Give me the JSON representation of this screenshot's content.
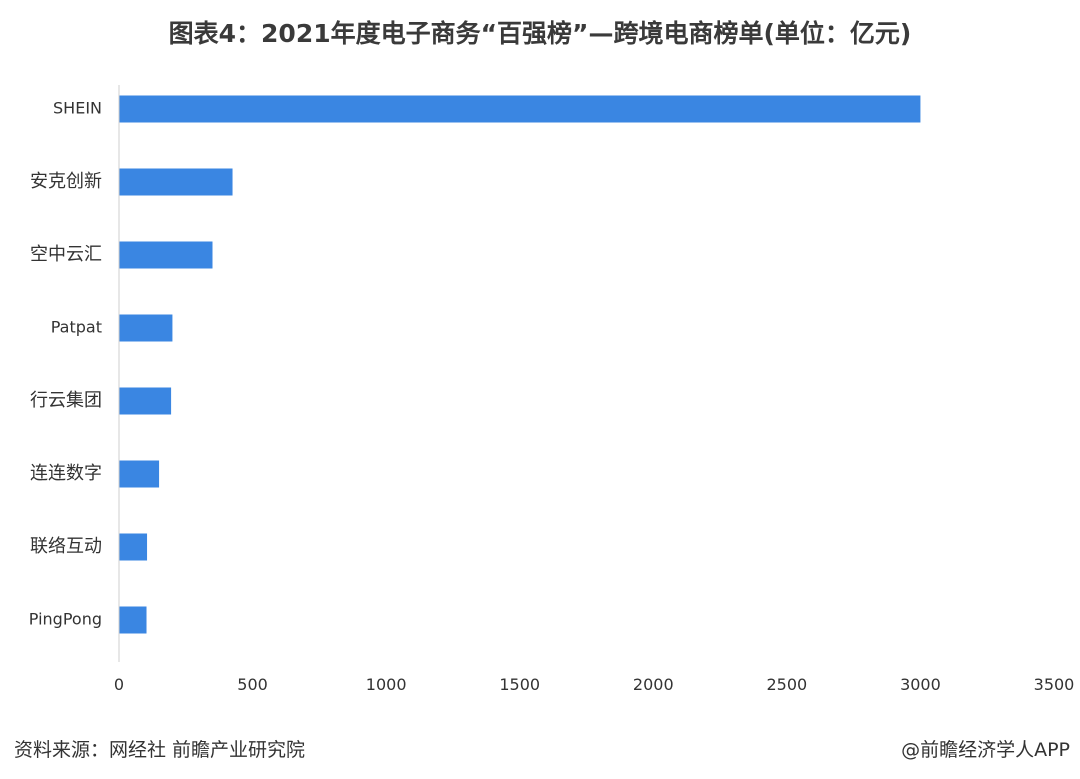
{
  "title": "图表4：2021年度电子商务“百强榜”—跨境电商榜单(单位：亿元)",
  "source": "资料来源：网经社 前瞻产业研究院",
  "credit": "@前瞻经济学人APP",
  "chart_data": {
    "type": "bar",
    "orientation": "horizontal",
    "categories": [
      "SHEIN",
      "安克创新",
      "空中云汇",
      "Patpat",
      "行云集团",
      "连连数字",
      "联络互动",
      "PingPong"
    ],
    "values": [
      3000,
      425,
      350,
      200,
      195,
      150,
      105,
      103
    ],
    "xlim": [
      0,
      3500
    ],
    "xticks": [
      0,
      500,
      1000,
      1500,
      2000,
      2500,
      3000,
      3500
    ],
    "bar_color": "#3a86e2",
    "grid": false
  }
}
